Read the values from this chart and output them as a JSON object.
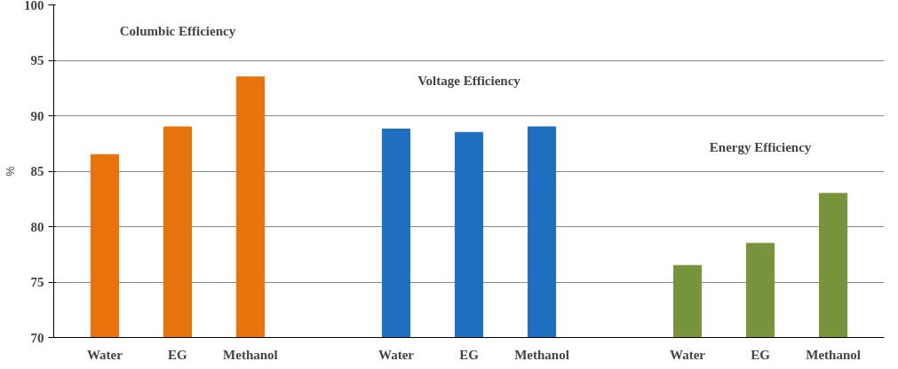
{
  "chart_data": {
    "type": "bar",
    "ylabel": "%",
    "categories": [
      "Water",
      "EG",
      "Methanol",
      null,
      "Water",
      "EG",
      "Methanol",
      null,
      "Water",
      "EG",
      "Methanol"
    ],
    "series": [
      {
        "name": "Columbic Efficiency",
        "color": "#e8720c",
        "values": [
          86.5,
          89,
          93.5,
          null,
          null,
          null,
          null,
          null,
          null,
          null,
          null
        ]
      },
      {
        "name": "Voltage Efficiency",
        "color": "#1f6fc0",
        "values": [
          null,
          null,
          null,
          null,
          88.8,
          88.5,
          89,
          null,
          null,
          null,
          null
        ]
      },
      {
        "name": "Energy Efficiency",
        "color": "#77933c",
        "values": [
          null,
          null,
          null,
          null,
          null,
          null,
          null,
          null,
          76.5,
          78.5,
          83
        ]
      }
    ],
    "ylim": [
      70,
      100
    ],
    "yticks": [
      70,
      75,
      80,
      85,
      90,
      95,
      100
    ],
    "grid": "y"
  }
}
